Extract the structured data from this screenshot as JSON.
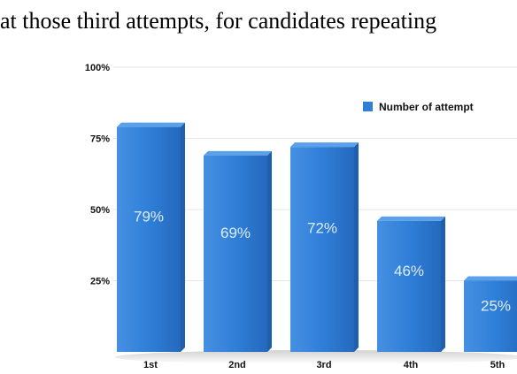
{
  "caption": "at those third attempts, for candidates repeating",
  "chart_data": {
    "type": "bar",
    "categories": [
      "1st",
      "2nd",
      "3rd",
      "4th",
      "5th"
    ],
    "series": [
      {
        "name": "Number of attempt",
        "values": [
          79,
          69,
          72,
          46,
          25
        ]
      }
    ],
    "value_labels": [
      "79%",
      "69%",
      "72%",
      "46%",
      "25%"
    ],
    "yticks": [
      "100%",
      "75%",
      "50%",
      "25%"
    ],
    "ytick_values": [
      100,
      75,
      50,
      25
    ],
    "ylim": [
      0,
      100
    ],
    "legend": "top-right",
    "grid": true,
    "colors": {
      "bar": "#2f7fd8",
      "bar_dark": "#1f5fae",
      "bar_top": "#5aa0ea",
      "grid": "#e6e6e6"
    }
  }
}
